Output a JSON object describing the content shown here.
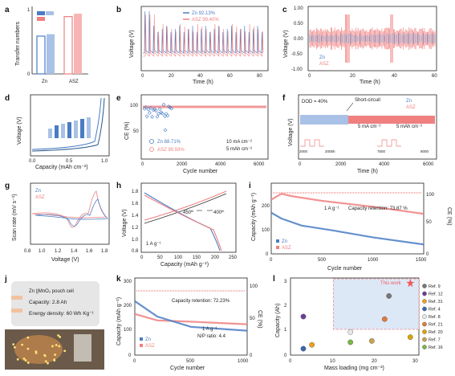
{
  "colors": {
    "zn": "#4a7cc4",
    "asz": "#f08080",
    "zn_light": "#a9c1e6",
    "asz_light": "#f8b4b4",
    "annot": "#f25a5a"
  },
  "panels": {
    "a": {
      "label": "a",
      "ylabel": "Transfer numbers",
      "tick0": "0",
      "tick1": "1",
      "cats": [
        "Zn",
        "ASZ"
      ]
    },
    "b": {
      "label": "b",
      "ylabel": "Voltage (V)",
      "xlabel": "Time (h)",
      "xticks": [
        "0",
        "20",
        "40",
        "60",
        "80"
      ],
      "leg": [
        "Zn   92.13%",
        "ASZ  99.40%"
      ]
    },
    "c": {
      "label": "c",
      "ylabel": "Voltage (V)",
      "xlabel": "Time (h)",
      "xticks": [
        "0",
        "20",
        "40",
        "60"
      ],
      "yticks": [
        "1.00",
        "0.50",
        "0.00",
        "-0.50",
        "-1.00"
      ],
      "leg": [
        "Zn",
        "ASZ"
      ]
    },
    "d": {
      "label": "d",
      "ylabel": "Voltage (V)",
      "xlabel": "Capacity (mAh cm⁻²)",
      "xticks": [
        "0.0",
        "0.5",
        "1.0"
      ]
    },
    "e": {
      "label": "e",
      "ylabel": "CE (%)",
      "xlabel": "Cycle number",
      "xticks": [
        "0",
        "2000",
        "4000",
        "6000"
      ],
      "ytick": "100",
      "ytick50": "50",
      "leg": [
        "Zn    88.71%",
        "ASZ   99.93%"
      ],
      "cond1": "10 mA cm⁻²",
      "cond2": "5 mAh cm⁻²"
    },
    "f": {
      "label": "f",
      "ylabel": "Voltage (V)",
      "xlabel": "Time (h)",
      "xticks": [
        "0",
        "2000",
        "4000",
        "6000"
      ],
      "dod": "DOD = 40%",
      "short": "Short-circuit",
      "leg": [
        "Zn",
        "ASZ"
      ],
      "cond1": "5 mA cm⁻²",
      "cond2": "5 mAh cm⁻²",
      "insets": [
        "2000",
        "2005h",
        "7500",
        "8000"
      ]
    },
    "g": {
      "label": "g",
      "ylabel": "Scan rate (mV s⁻¹)",
      "xlabel": "Voltage (V)",
      "xticks": [
        "0.8",
        "1.0",
        "1.2",
        "1.4",
        "1.6",
        "1.8"
      ],
      "leg": [
        "Zn",
        "ASZ"
      ]
    },
    "h": {
      "label": "h",
      "ylabel": "Voltage (V)",
      "xlabel": "Capacity (mAh g⁻¹)",
      "xticks": [
        "0",
        "50",
        "100",
        "150",
        "200",
        "250"
      ],
      "yticks": [
        "1.8",
        "1.6",
        "1.4",
        "1.2",
        "1.0",
        "0.8"
      ],
      "a1": "450",
      "a1s": "th",
      "a2": "400",
      "a2s": "th",
      "rate": "1 A g⁻¹"
    },
    "i": {
      "label": "i",
      "ylabel": "Capacity (mAh g⁻¹)",
      "ylabel2": "CE (%)",
      "xlabel": "Cycle number",
      "xticks": [
        "0",
        "500",
        "1000",
        "1500"
      ],
      "yticks": [
        "200",
        "100",
        "0"
      ],
      "y2ticks": [
        "100",
        "50",
        "0"
      ],
      "rate": "1 A g⁻¹",
      "retention": "Capacity retention: 73.87 %",
      "leg": [
        "Zn",
        "ASZ"
      ]
    },
    "j": {
      "label": "j",
      "title": "Zn ||MnO₂ pouch cell",
      "cap": "Capacity: 2.8 Ah",
      "energy": "Energy density: 60 Wh Kg⁻¹"
    },
    "k": {
      "label": "k",
      "ylabel": "Capacity (mAh g⁻¹)",
      "ylabel2": "CE (%)",
      "xlabel": "Cycle number",
      "xticks": [
        "0",
        "500",
        "1000"
      ],
      "yticks": [
        "300",
        "200",
        "100",
        "0"
      ],
      "y2ticks": [
        "100",
        "50",
        "0"
      ],
      "retention": "Capacity retention: 72.23%",
      "rate": "1 A g⁻¹",
      "np": "N/P ratio: 4.4",
      "leg": [
        "Zn",
        "ASZ"
      ]
    },
    "l": {
      "label": "l",
      "ylabel": "Capacity (Ah)",
      "xlabel": "Mass loading (mg cm⁻²)",
      "xticks": [
        "0",
        "10",
        "20",
        "30"
      ],
      "yticks": [
        "3",
        "2",
        "1",
        "0"
      ],
      "this_work": "This work",
      "refs": [
        "Ref. 9",
        "Ref. 12",
        "Ref. 31",
        "Ref. 4",
        "Ref. 8",
        "Ref. 21",
        "Ref. 20",
        "Ref. 7",
        "Ref. 16"
      ],
      "ref_colors": [
        "#777777",
        "#6a3d9a",
        "#f0a020",
        "#3a66b0",
        "#e8e8e8",
        "#e07a3a",
        "#d9a400",
        "#c8a050",
        "#7ab648"
      ]
    }
  },
  "chart_data": [
    {
      "type": "bar",
      "panel": "a",
      "categories": [
        "Zn",
        "ASZ"
      ],
      "values": [
        0.56,
        0.85
      ],
      "ylim": [
        0,
        1
      ]
    },
    {
      "type": "line",
      "panel": "b",
      "series": [
        {
          "name": "Zn",
          "ce": "92.13%"
        },
        {
          "name": "ASZ",
          "ce": "99.40%"
        }
      ],
      "xlim": [
        0,
        85
      ]
    },
    {
      "type": "line",
      "panel": "e",
      "series": [
        {
          "name": "Zn",
          "value": 88.71
        },
        {
          "name": "ASZ",
          "value": 99.93
        }
      ],
      "xlim": [
        0,
        6000
      ]
    },
    {
      "type": "line",
      "panel": "i",
      "series": [
        {
          "name": "ASZ",
          "x": [
            0,
            100,
            200,
            500,
            1000,
            1500
          ],
          "y": [
            230,
            255,
            245,
            225,
            200,
            170
          ]
        },
        {
          "name": "Zn",
          "x": [
            0,
            100,
            300,
            600,
            1000,
            1500
          ],
          "y": [
            175,
            150,
            120,
            100,
            70,
            40
          ]
        }
      ],
      "xlim": [
        0,
        1500
      ],
      "ylim": [
        0,
        300
      ]
    },
    {
      "type": "line",
      "panel": "k",
      "series": [
        {
          "name": "ASZ",
          "x": [
            0,
            200,
            500,
            1000
          ],
          "y": [
            160,
            135,
            130,
            120
          ]
        },
        {
          "name": "Zn",
          "x": [
            0,
            200,
            500,
            1000
          ],
          "y": [
            210,
            150,
            110,
            95
          ]
        }
      ],
      "xlim": [
        0,
        1000
      ],
      "ylim": [
        0,
        300
      ]
    },
    {
      "type": "scatter",
      "panel": "l",
      "points": [
        {
          "name": "This work",
          "x": 28,
          "y": 2.8
        },
        {
          "name": "Ref. 9",
          "x": 23,
          "y": 2.3
        },
        {
          "name": "Ref. 12",
          "x": 3,
          "y": 1.5
        },
        {
          "name": "Ref. 31",
          "x": 5,
          "y": 0.4
        },
        {
          "name": "Ref. 4",
          "x": 3,
          "y": 0.25
        },
        {
          "name": "Ref. 8",
          "x": 14,
          "y": 0.9
        },
        {
          "name": "Ref. 21",
          "x": 22,
          "y": 1.4
        },
        {
          "name": "Ref. 20",
          "x": 28,
          "y": 0.7
        },
        {
          "name": "Ref. 7",
          "x": 19,
          "y": 0.55
        },
        {
          "name": "Ref. 16",
          "x": 14,
          "y": 0.5
        }
      ],
      "xlim": [
        0,
        30
      ],
      "ylim": [
        0,
        3
      ]
    }
  ]
}
